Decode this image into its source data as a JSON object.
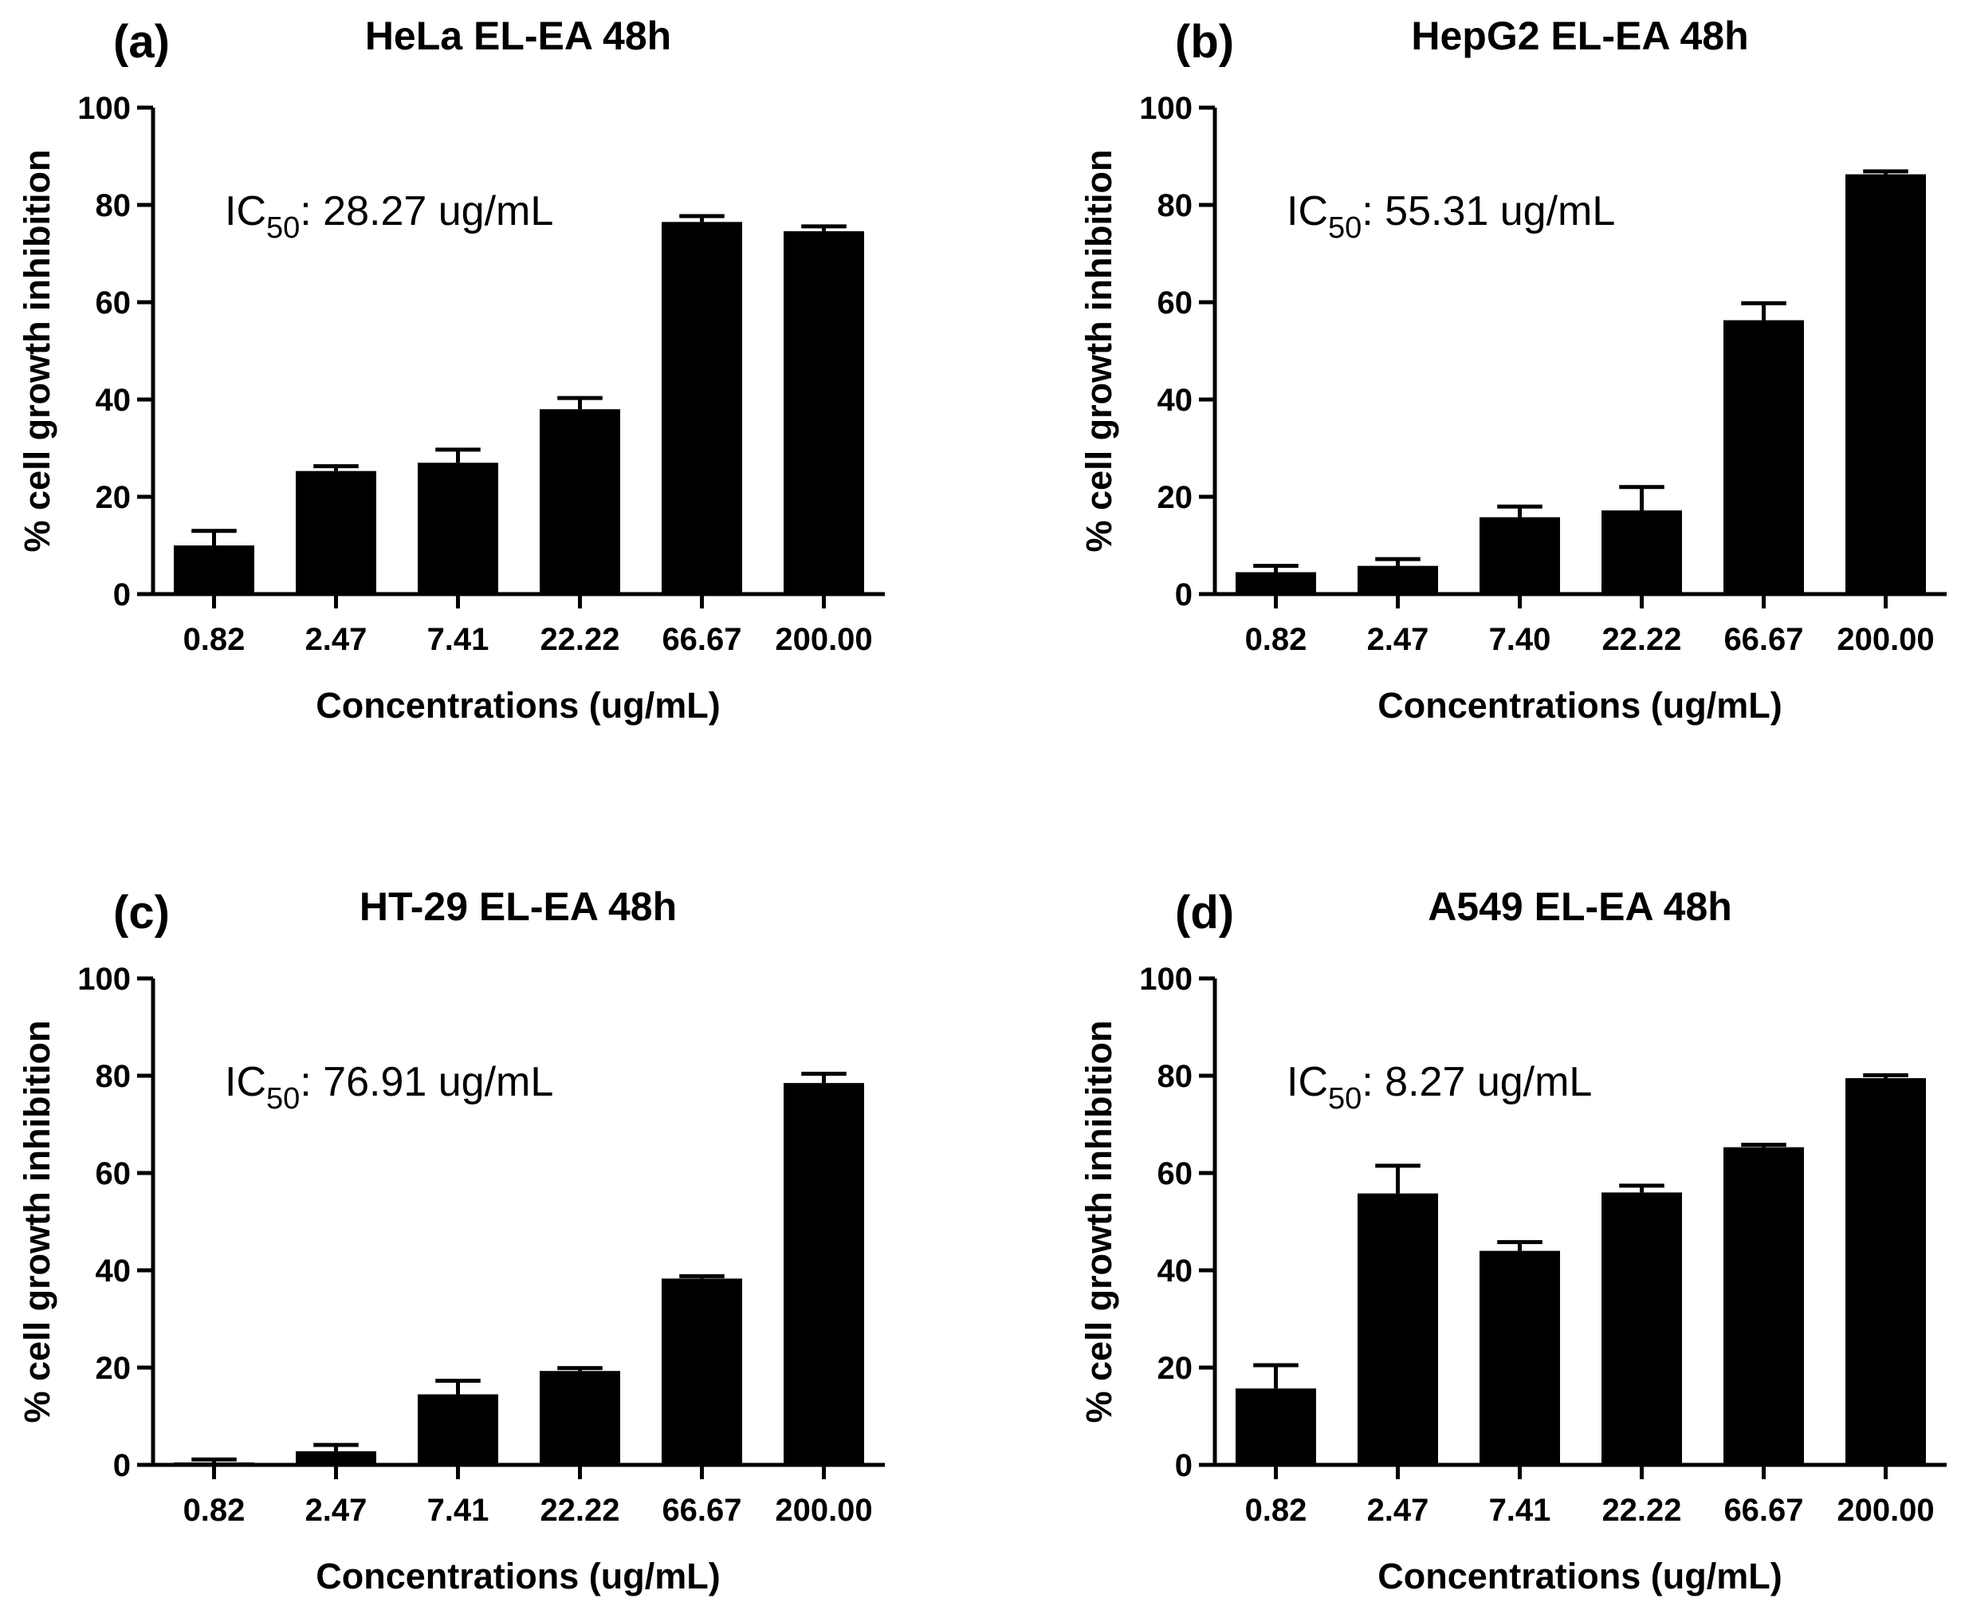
{
  "chart_data": [
    {
      "type": "bar",
      "panel": "(a)",
      "title": "HeLa EL-EA 48h",
      "ic50_prefix": "IC",
      "ic50_subscript": "50",
      "ic50_value": ": 28.27 ug/mL",
      "xlabel": "Concentrations (ug/mL)",
      "ylabel": "% cell growth inhibition",
      "ylim": [
        0,
        100
      ],
      "yticks": [
        "0",
        "20",
        "40",
        "60",
        "80",
        "100"
      ],
      "categories": [
        "0.82",
        "2.47",
        "7.41",
        "22.22",
        "66.67",
        "200.00"
      ],
      "values": [
        10,
        25.3,
        27,
        38,
        76.5,
        74.6
      ],
      "errors": [
        3,
        1,
        2.7,
        2.3,
        1.2,
        1
      ]
    },
    {
      "type": "bar",
      "panel": "(b)",
      "title": "HepG2 EL-EA 48h",
      "ic50_prefix": "IC",
      "ic50_subscript": "50",
      "ic50_value": ": 55.31 ug/mL",
      "xlabel": "Concentrations (ug/mL)",
      "ylabel": "% cell growth inhibition",
      "ylim": [
        0,
        100
      ],
      "yticks": [
        "0",
        "20",
        "40",
        "60",
        "80",
        "100"
      ],
      "categories": [
        "0.82",
        "2.47",
        "7.40",
        "22.22",
        "66.67",
        "200.00"
      ],
      "values": [
        4.5,
        5.8,
        15.8,
        17.2,
        56.3,
        86.3
      ],
      "errors": [
        1.3,
        1.4,
        2.2,
        4.8,
        3.5,
        0.6
      ]
    },
    {
      "type": "bar",
      "panel": "(c)",
      "title": "HT-29 EL-EA 48h",
      "ic50_prefix": "IC",
      "ic50_subscript": "50",
      "ic50_value": ": 76.91 ug/mL",
      "xlabel": "Concentrations (ug/mL)",
      "ylabel": "% cell growth inhibition",
      "ylim": [
        0,
        100
      ],
      "yticks": [
        "0",
        "20",
        "40",
        "60",
        "80",
        "100"
      ],
      "categories": [
        "0.82",
        "2.47",
        "7.41",
        "22.22",
        "66.67",
        "200.00"
      ],
      "values": [
        0.5,
        2.8,
        14.5,
        19.3,
        38.3,
        78.5
      ],
      "errors": [
        0.6,
        1.3,
        2.8,
        0.6,
        0.5,
        1.9
      ]
    },
    {
      "type": "bar",
      "panel": "(d)",
      "title": "A549 EL-EA 48h",
      "ic50_prefix": "IC",
      "ic50_subscript": "50",
      "ic50_value": ": 8.27 ug/mL",
      "xlabel": "Concentrations (ug/mL)",
      "ylabel": "% cell growth inhibition",
      "ylim": [
        0,
        100
      ],
      "yticks": [
        "0",
        "20",
        "40",
        "60",
        "80",
        "100"
      ],
      "categories": [
        "0.82",
        "2.47",
        "7.41",
        "22.22",
        "66.67",
        "200.00"
      ],
      "values": [
        15.7,
        55.8,
        44,
        56,
        65.3,
        79.5
      ],
      "errors": [
        4.8,
        5.7,
        1.8,
        1.4,
        0.5,
        0.6
      ]
    }
  ]
}
